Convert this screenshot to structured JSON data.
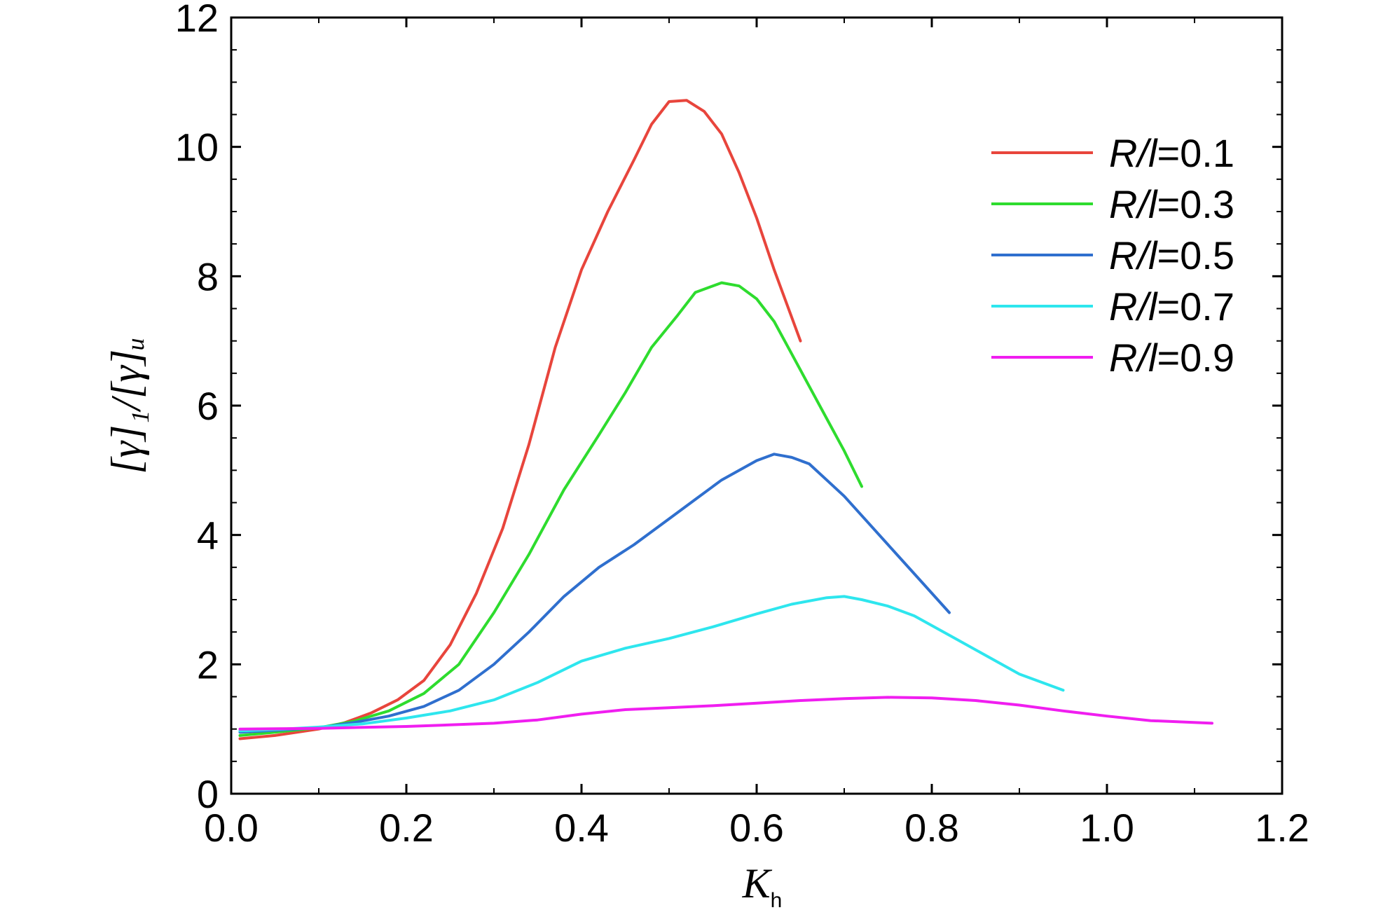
{
  "chart_data": {
    "type": "line",
    "xlabel": {
      "main": "K",
      "sub": "h"
    },
    "ylabel": "[γ]₁/[γ]ᵤ",
    "xlim": [
      0.0,
      1.2
    ],
    "ylim": [
      0,
      12
    ],
    "xticks": [
      "0.0",
      "0.2",
      "0.4",
      "0.6",
      "0.8",
      "1.0",
      "1.2"
    ],
    "yticks": [
      "0",
      "2",
      "4",
      "6",
      "8",
      "10",
      "12"
    ],
    "grid": false,
    "legend_position": "top-right",
    "series": [
      {
        "name": "R/l=0.1",
        "legend_italic": "R/l",
        "legend_value": "=0.1",
        "color": "#e8453c",
        "points": [
          [
            0.01,
            0.85
          ],
          [
            0.05,
            0.9
          ],
          [
            0.1,
            1.0
          ],
          [
            0.13,
            1.1
          ],
          [
            0.16,
            1.25
          ],
          [
            0.19,
            1.45
          ],
          [
            0.22,
            1.75
          ],
          [
            0.25,
            2.3
          ],
          [
            0.28,
            3.1
          ],
          [
            0.31,
            4.1
          ],
          [
            0.34,
            5.4
          ],
          [
            0.37,
            6.9
          ],
          [
            0.4,
            8.1
          ],
          [
            0.43,
            9.0
          ],
          [
            0.46,
            9.8
          ],
          [
            0.48,
            10.35
          ],
          [
            0.5,
            10.7
          ],
          [
            0.52,
            10.72
          ],
          [
            0.54,
            10.55
          ],
          [
            0.56,
            10.2
          ],
          [
            0.58,
            9.6
          ],
          [
            0.6,
            8.9
          ],
          [
            0.62,
            8.1
          ],
          [
            0.65,
            7.0
          ]
        ]
      },
      {
        "name": "R/l=0.3",
        "legend_italic": "R/l",
        "legend_value": "=0.3",
        "color": "#2edc2e",
        "points": [
          [
            0.01,
            0.9
          ],
          [
            0.05,
            0.95
          ],
          [
            0.1,
            1.02
          ],
          [
            0.14,
            1.12
          ],
          [
            0.18,
            1.28
          ],
          [
            0.22,
            1.55
          ],
          [
            0.26,
            2.0
          ],
          [
            0.3,
            2.8
          ],
          [
            0.34,
            3.7
          ],
          [
            0.38,
            4.7
          ],
          [
            0.42,
            5.55
          ],
          [
            0.45,
            6.2
          ],
          [
            0.48,
            6.9
          ],
          [
            0.51,
            7.4
          ],
          [
            0.53,
            7.75
          ],
          [
            0.56,
            7.9
          ],
          [
            0.58,
            7.85
          ],
          [
            0.6,
            7.65
          ],
          [
            0.62,
            7.3
          ],
          [
            0.64,
            6.8
          ],
          [
            0.66,
            6.3
          ],
          [
            0.68,
            5.8
          ],
          [
            0.7,
            5.3
          ],
          [
            0.72,
            4.75
          ]
        ]
      },
      {
        "name": "R/l=0.5",
        "legend_italic": "R/l",
        "legend_value": "=0.5",
        "color": "#2f6fce",
        "points": [
          [
            0.01,
            0.95
          ],
          [
            0.05,
            0.98
          ],
          [
            0.1,
            1.02
          ],
          [
            0.14,
            1.1
          ],
          [
            0.18,
            1.2
          ],
          [
            0.22,
            1.35
          ],
          [
            0.26,
            1.6
          ],
          [
            0.3,
            2.0
          ],
          [
            0.34,
            2.5
          ],
          [
            0.38,
            3.05
          ],
          [
            0.42,
            3.5
          ],
          [
            0.46,
            3.85
          ],
          [
            0.5,
            4.25
          ],
          [
            0.53,
            4.55
          ],
          [
            0.56,
            4.85
          ],
          [
            0.6,
            5.15
          ],
          [
            0.62,
            5.25
          ],
          [
            0.64,
            5.2
          ],
          [
            0.66,
            5.1
          ],
          [
            0.68,
            4.85
          ],
          [
            0.7,
            4.6
          ],
          [
            0.73,
            4.15
          ],
          [
            0.76,
            3.7
          ],
          [
            0.79,
            3.25
          ],
          [
            0.82,
            2.8
          ]
        ]
      },
      {
        "name": "R/l=0.7",
        "legend_italic": "R/l",
        "legend_value": "=0.7",
        "color": "#2ee6ee",
        "points": [
          [
            0.01,
            0.97
          ],
          [
            0.06,
            1.0
          ],
          [
            0.1,
            1.03
          ],
          [
            0.15,
            1.08
          ],
          [
            0.2,
            1.17
          ],
          [
            0.25,
            1.28
          ],
          [
            0.3,
            1.45
          ],
          [
            0.35,
            1.72
          ],
          [
            0.4,
            2.05
          ],
          [
            0.45,
            2.25
          ],
          [
            0.5,
            2.4
          ],
          [
            0.55,
            2.58
          ],
          [
            0.6,
            2.78
          ],
          [
            0.64,
            2.93
          ],
          [
            0.68,
            3.03
          ],
          [
            0.7,
            3.05
          ],
          [
            0.72,
            3.0
          ],
          [
            0.75,
            2.9
          ],
          [
            0.78,
            2.75
          ],
          [
            0.82,
            2.45
          ],
          [
            0.86,
            2.15
          ],
          [
            0.9,
            1.85
          ],
          [
            0.95,
            1.6
          ]
        ]
      },
      {
        "name": "R/l=0.9",
        "legend_italic": "R/l",
        "legend_value": "=0.9",
        "color": "#f01ef0",
        "points": [
          [
            0.01,
            1.0
          ],
          [
            0.1,
            1.01
          ],
          [
            0.2,
            1.04
          ],
          [
            0.3,
            1.09
          ],
          [
            0.35,
            1.14
          ],
          [
            0.4,
            1.23
          ],
          [
            0.45,
            1.3
          ],
          [
            0.5,
            1.33
          ],
          [
            0.55,
            1.36
          ],
          [
            0.6,
            1.4
          ],
          [
            0.65,
            1.44
          ],
          [
            0.7,
            1.47
          ],
          [
            0.75,
            1.49
          ],
          [
            0.8,
            1.48
          ],
          [
            0.85,
            1.44
          ],
          [
            0.9,
            1.37
          ],
          [
            0.95,
            1.28
          ],
          [
            1.0,
            1.2
          ],
          [
            1.05,
            1.13
          ],
          [
            1.12,
            1.09
          ]
        ]
      }
    ]
  }
}
